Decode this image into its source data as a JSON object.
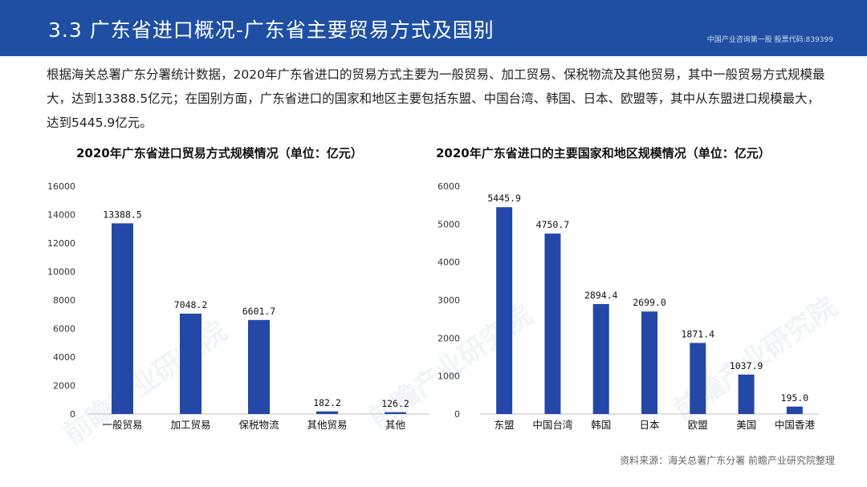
{
  "header": {
    "title": "3.3 广东省进口概况-广东省主要贸易方式及国别",
    "brand": "中国产业咨询第一股 股票代码:839399"
  },
  "intro": "根据海关总署广东分署统计数据，2020年广东省进口的贸易方式主要为一般贸易、加工贸易、保税物流及其他贸易，其中一般贸易方式规模最大，达到13388.5亿元；在国别方面，广东省进口的国家和地区主要包括东盟、中国台湾、韩国、日本、欧盟等，其中从东盟进口规模最大，达到5445.9亿元。",
  "watermark": "前瞻产业研究院",
  "source": "资料来源：海关总署广东分署 前瞻产业研究院整理",
  "colors": {
    "header": "#1e4fa3",
    "bar": "#2448a8"
  },
  "chart_data": [
    {
      "type": "bar",
      "title": "2020年广东省进口贸易方式规模情况（单位：亿元）",
      "categories": [
        "一般贸易",
        "加工贸易",
        "保税物流",
        "其他贸易",
        "其他"
      ],
      "values": [
        13388.5,
        7048.2,
        6601.7,
        182.2,
        126.2
      ],
      "labels": [
        "13388.5",
        "7048.2",
        "6601.7",
        "182.2",
        "126.2"
      ],
      "ylim": [
        0,
        16000
      ],
      "yticks": [
        0,
        2000,
        4000,
        6000,
        8000,
        10000,
        12000,
        14000,
        16000
      ],
      "xlabel": "",
      "ylabel": "",
      "grid": false
    },
    {
      "type": "bar",
      "title": "2020年广东省进口的主要国家和地区规模情况（单位：亿元）",
      "categories": [
        "东盟",
        "中国台湾",
        "韩国",
        "日本",
        "欧盟",
        "美国",
        "中国香港"
      ],
      "values": [
        5445.9,
        4750.7,
        2894.4,
        2699.0,
        1871.4,
        1037.9,
        195.0
      ],
      "labels": [
        "5445.9",
        "4750.7",
        "2894.4",
        "2699.0",
        "1871.4",
        "1037.9",
        "195.0"
      ],
      "ylim": [
        0,
        6000
      ],
      "yticks": [
        0,
        1000,
        2000,
        3000,
        4000,
        5000,
        6000
      ],
      "xlabel": "",
      "ylabel": "",
      "grid": false
    }
  ]
}
